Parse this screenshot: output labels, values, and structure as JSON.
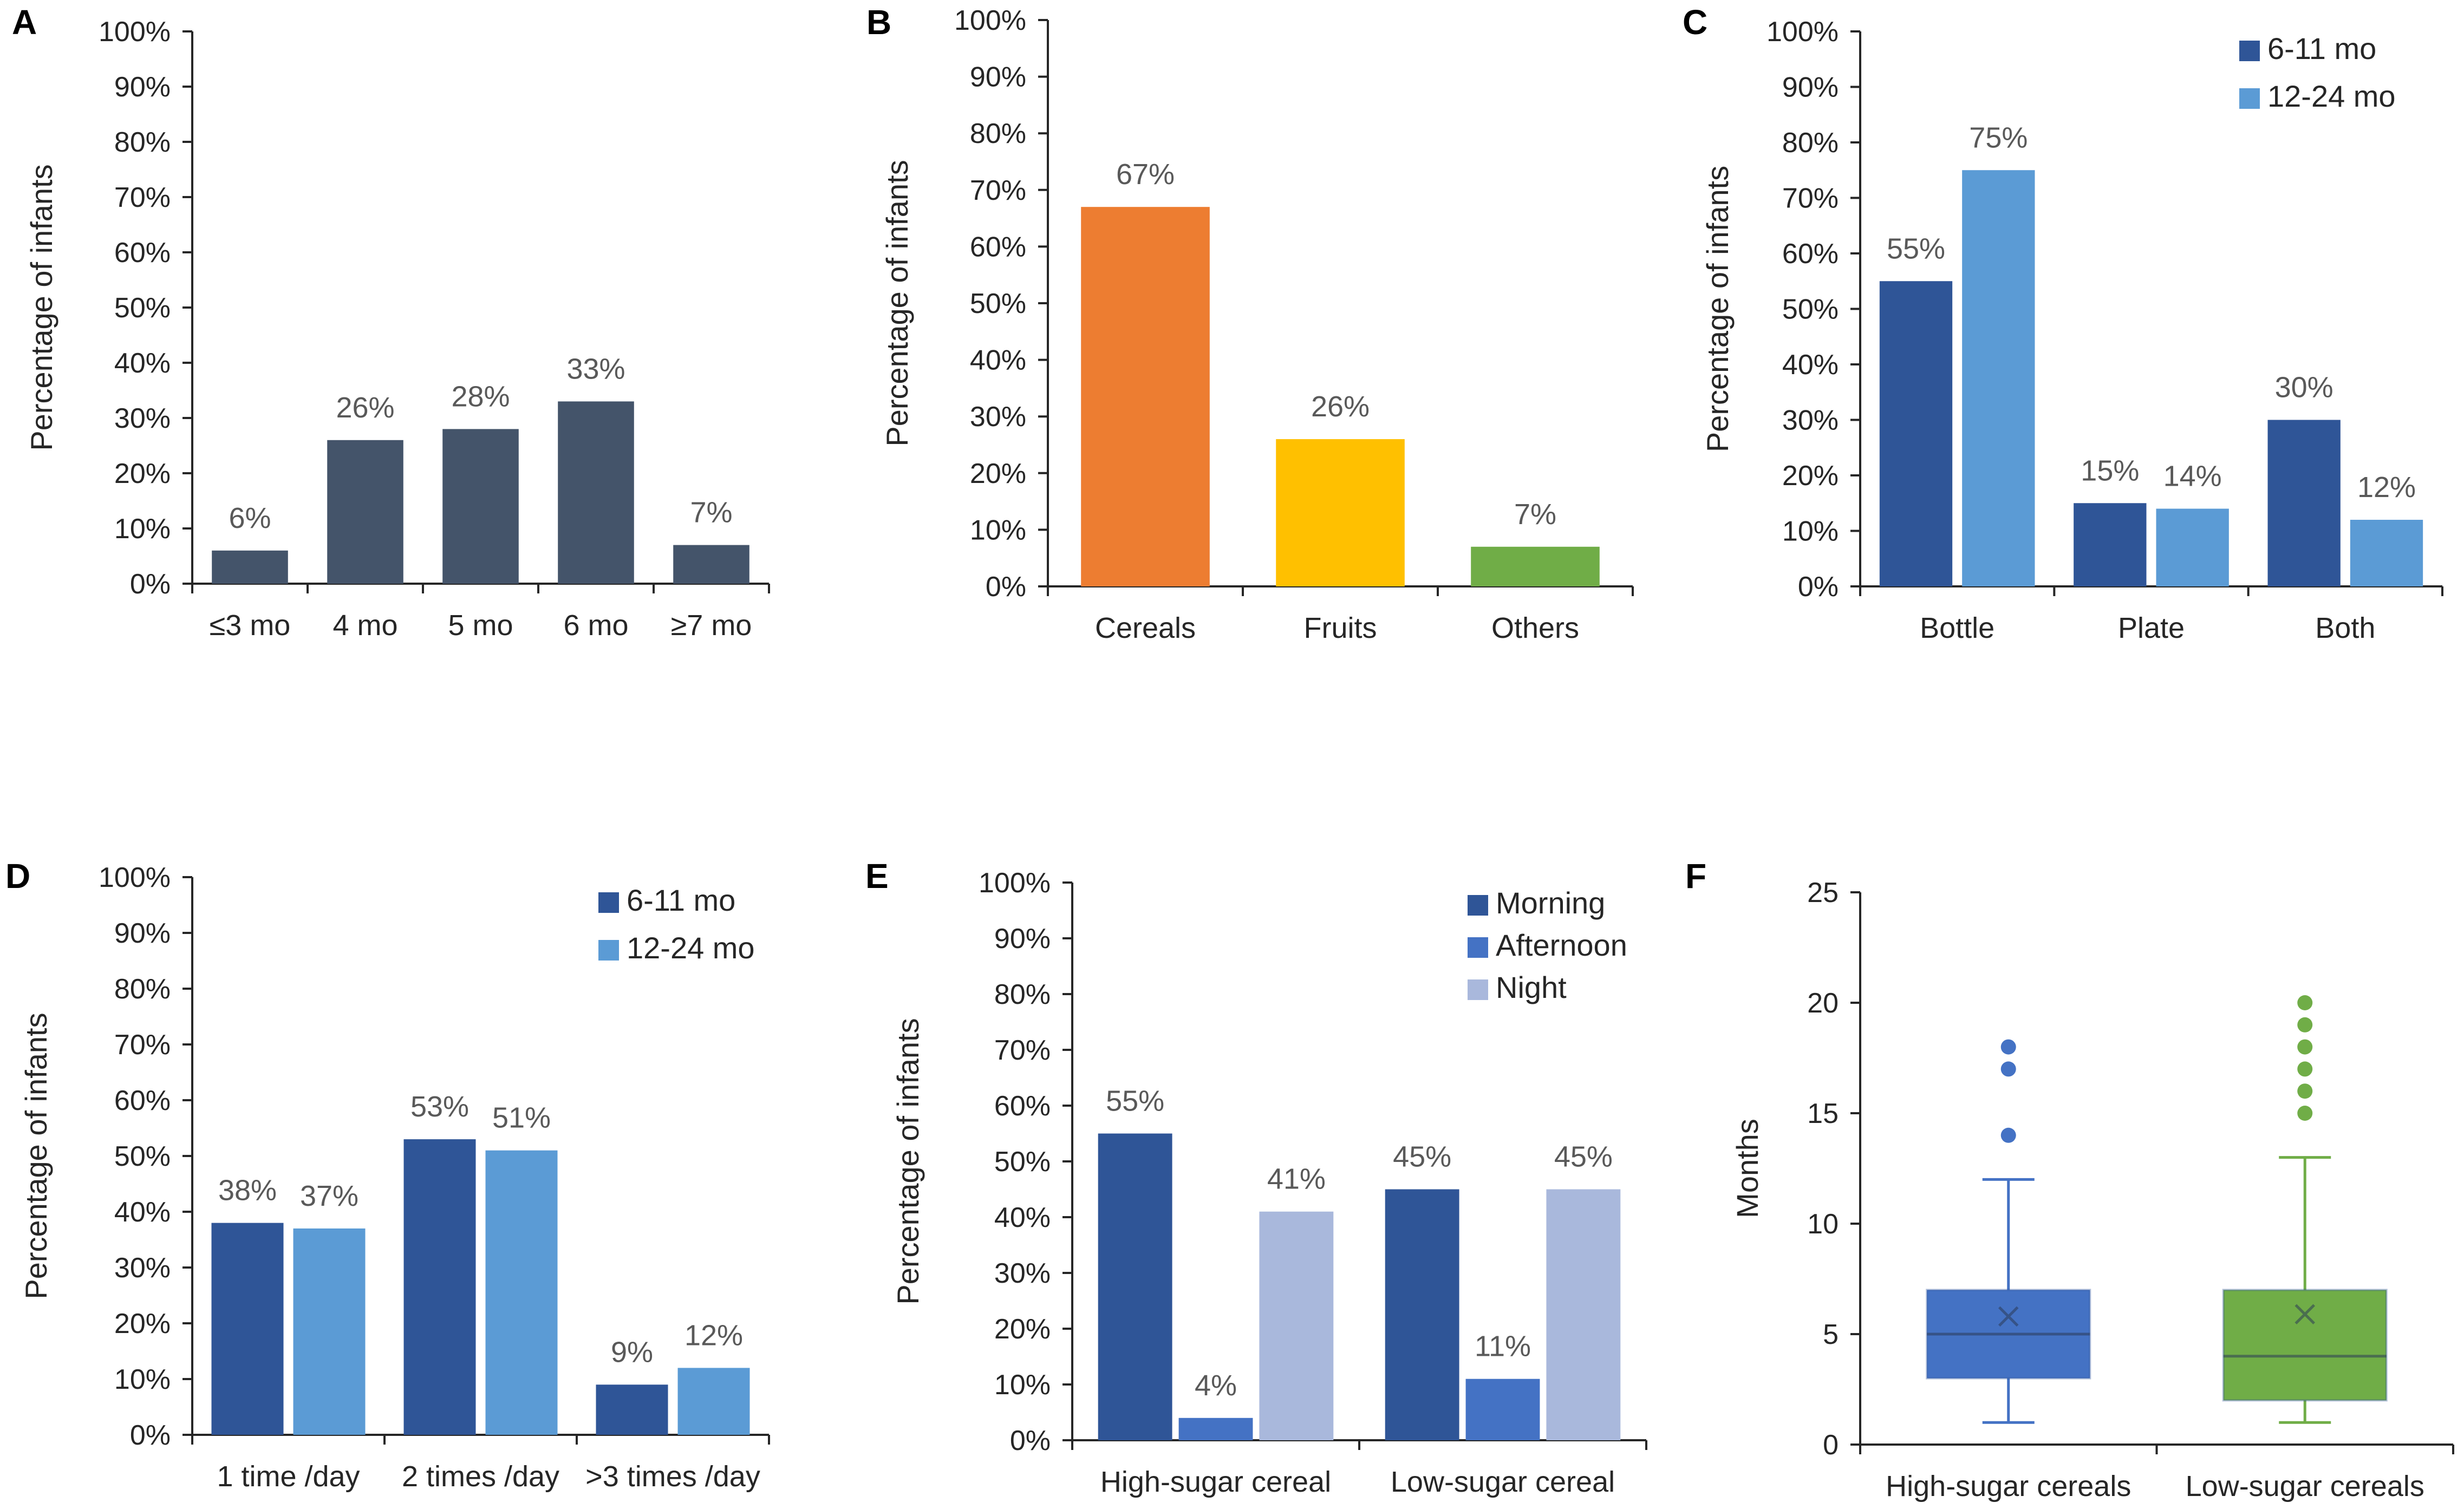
{
  "colors": {
    "slate": "#44546A",
    "orange": "#ED7D31",
    "yellow": "#FFC000",
    "green": "#70AD47",
    "dark_blue": "#2F5597",
    "light_blue": "#5B9BD5",
    "mid_blue": "#4472C4",
    "pale_blue": "#A9B8DC",
    "text": "#595959",
    "axis": "#262626"
  },
  "chart_data": [
    {
      "panel": "A",
      "type": "bar",
      "ylabel": "Percentage of infants",
      "ylim": [
        0,
        100
      ],
      "ticks": [
        "0%",
        "10%",
        "20%",
        "30%",
        "40%",
        "50%",
        "60%",
        "70%",
        "80%",
        "90%",
        "100%"
      ],
      "categories": [
        "≤3 mo",
        "4 mo",
        "5 mo",
        "6 mo",
        "≥7 mo"
      ],
      "series": [
        {
          "name": "",
          "values": [
            6,
            26,
            28,
            33,
            7
          ],
          "labels": [
            "6%",
            "26%",
            "28%",
            "33%",
            "7%"
          ],
          "color": "#44546A"
        }
      ],
      "legend": null
    },
    {
      "panel": "B",
      "type": "bar",
      "ylabel": "Percentage of infants",
      "ylim": [
        0,
        100
      ],
      "ticks": [
        "0%",
        "10%",
        "20%",
        "30%",
        "40%",
        "50%",
        "60%",
        "70%",
        "80%",
        "90%",
        "100%"
      ],
      "categories": [
        "Cereals",
        "Fruits",
        "Others"
      ],
      "series": [
        {
          "name": "",
          "values": [
            67,
            26,
            7
          ],
          "labels": [
            "67%",
            "26%",
            "7%"
          ],
          "colors": [
            "#ED7D31",
            "#FFC000",
            "#70AD47"
          ]
        }
      ],
      "legend": null
    },
    {
      "panel": "C",
      "type": "bar",
      "ylabel": "Percentage of infants",
      "ylim": [
        0,
        100
      ],
      "ticks": [
        "0%",
        "10%",
        "20%",
        "30%",
        "40%",
        "50%",
        "60%",
        "70%",
        "80%",
        "90%",
        "100%"
      ],
      "categories": [
        "Bottle",
        "Plate",
        "Both"
      ],
      "series": [
        {
          "name": "6-11 mo",
          "values": [
            55,
            15,
            30
          ],
          "labels": [
            "55%",
            "15%",
            "30%"
          ],
          "color": "#2F5597"
        },
        {
          "name": "12-24 mo",
          "values": [
            75,
            14,
            12
          ],
          "labels": [
            "75%",
            "14%",
            "12%"
          ],
          "color": "#5B9BD5"
        }
      ],
      "legend": "top-right"
    },
    {
      "panel": "D",
      "type": "bar",
      "ylabel": "Percentage of infants",
      "ylim": [
        0,
        100
      ],
      "ticks": [
        "0%",
        "10%",
        "20%",
        "30%",
        "40%",
        "50%",
        "60%",
        "70%",
        "80%",
        "90%",
        "100%"
      ],
      "categories": [
        "1 time /day",
        "2 times /day",
        ">3 times /day"
      ],
      "series": [
        {
          "name": "6-11 mo",
          "values": [
            38,
            53,
            9
          ],
          "labels": [
            "38%",
            "53%",
            "9%"
          ],
          "color": "#2F5597"
        },
        {
          "name": "12-24 mo",
          "values": [
            37,
            51,
            12
          ],
          "labels": [
            "37%",
            "51%",
            "12%"
          ],
          "color": "#5B9BD5"
        }
      ],
      "legend": "top-right"
    },
    {
      "panel": "E",
      "type": "bar",
      "ylabel": "Percentage of infants",
      "ylim": [
        0,
        100
      ],
      "ticks": [
        "0%",
        "10%",
        "20%",
        "30%",
        "40%",
        "50%",
        "60%",
        "70%",
        "80%",
        "90%",
        "100%"
      ],
      "categories": [
        "High-sugar cereal",
        "Low-sugar cereal"
      ],
      "series": [
        {
          "name": "Morning",
          "values": [
            55,
            45
          ],
          "labels": [
            "55%",
            "45%"
          ],
          "color": "#2F5597"
        },
        {
          "name": "Afternoon",
          "values": [
            4,
            11
          ],
          "labels": [
            "4%",
            "11%"
          ],
          "color": "#4472C4"
        },
        {
          "name": "Night",
          "values": [
            41,
            45
          ],
          "labels": [
            "41%",
            "45%"
          ],
          "color": "#A9B8DC"
        }
      ],
      "legend": "top-right"
    },
    {
      "panel": "F",
      "type": "box",
      "ylabel": "Months",
      "ylim": [
        0,
        25
      ],
      "ticks": [
        "0",
        "5",
        "10",
        "15",
        "20",
        "25"
      ],
      "categories": [
        "High-sugar cereals",
        "Low-sugar cereals"
      ],
      "boxes": [
        {
          "name": "High-sugar cereals",
          "min": 1,
          "q1": 3,
          "median": 5,
          "q3": 7,
          "max": 12,
          "mean": 5.8,
          "outliers": [
            14,
            17,
            18
          ],
          "color": "#4472C4"
        },
        {
          "name": "Low-sugar cereals",
          "min": 1,
          "q1": 2,
          "median": 4,
          "q3": 7,
          "max": 13,
          "mean": 5.9,
          "outliers": [
            15,
            16,
            17,
            18,
            19,
            20
          ],
          "color": "#70AD47"
        }
      ],
      "legend": null
    }
  ]
}
